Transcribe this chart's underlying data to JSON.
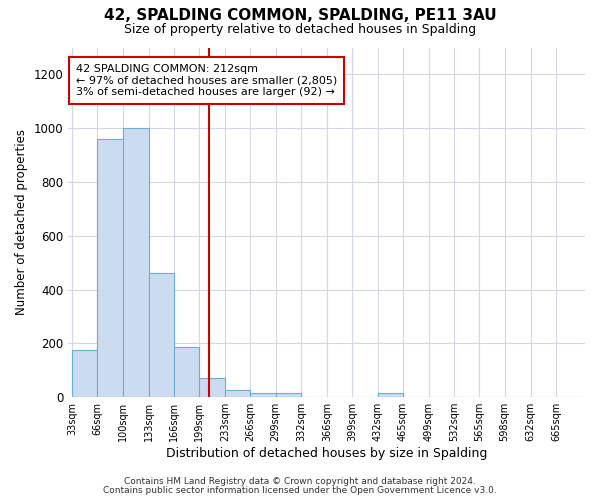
{
  "title": "42, SPALDING COMMON, SPALDING, PE11 3AU",
  "subtitle": "Size of property relative to detached houses in Spalding",
  "xlabel": "Distribution of detached houses by size in Spalding",
  "ylabel": "Number of detached properties",
  "bar_color": "#ccdcf0",
  "bar_edge_color": "#6baed6",
  "red_line_x": 212,
  "bin_edges": [
    33,
    66,
    100,
    133,
    166,
    199,
    233,
    266,
    299,
    332,
    366,
    399,
    432,
    465,
    499,
    532,
    565,
    598,
    632,
    665,
    698
  ],
  "bar_values": [
    175,
    960,
    1000,
    460,
    185,
    70,
    25,
    15,
    15,
    0,
    0,
    0,
    15,
    0,
    0,
    0,
    0,
    0,
    0,
    0
  ],
  "ylim": [
    0,
    1300
  ],
  "yticks": [
    0,
    200,
    400,
    600,
    800,
    1000,
    1200
  ],
  "annotation_text": "42 SPALDING COMMON: 212sqm\n← 97% of detached houses are smaller (2,805)\n3% of semi-detached houses are larger (92) →",
  "annotation_box_color": "#ffffff",
  "annotation_box_edge_color": "#cc0000",
  "footer_line1": "Contains HM Land Registry data © Crown copyright and database right 2024.",
  "footer_line2": "Contains public sector information licensed under the Open Government Licence v3.0.",
  "background_color": "#ffffff",
  "grid_color": "#d0d8e8"
}
